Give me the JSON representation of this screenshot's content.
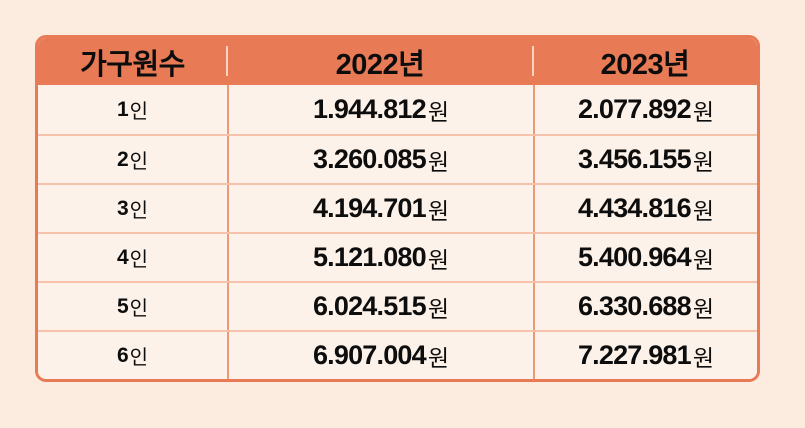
{
  "table": {
    "columns": [
      "가구원수",
      "2022년",
      "2023년"
    ],
    "person_suffix": "인",
    "currency_suffix": "원",
    "rows": [
      {
        "members": "1",
        "y2022": "1.944.812",
        "y2023": "2.077.892"
      },
      {
        "members": "2",
        "y2022": "3.260.085",
        "y2023": "3.456.155"
      },
      {
        "members": "3",
        "y2022": "4.194.701",
        "y2023": "4.434.816"
      },
      {
        "members": "4",
        "y2022": "5.121.080",
        "y2023": "5.400.964"
      },
      {
        "members": "5",
        "y2022": "6.024.515",
        "y2023": "6.330.688"
      },
      {
        "members": "6",
        "y2022": "6.907.004",
        "y2023": "7.227.981"
      }
    ]
  },
  "chart_data": {
    "type": "table",
    "title": "",
    "columns": [
      "가구원수",
      "2022년",
      "2023년"
    ],
    "rows": [
      [
        "1인",
        "1.944.812원",
        "2.077.892원"
      ],
      [
        "2인",
        "3.260.085원",
        "3.456.155원"
      ],
      [
        "3인",
        "4.194.701원",
        "4.434.816원"
      ],
      [
        "4인",
        "5.121.080원",
        "5.400.964원"
      ],
      [
        "5인",
        "6.024.515원",
        "6.330.688원"
      ],
      [
        "6인",
        "6.907.004원",
        "7.227.981원"
      ]
    ]
  },
  "colors": {
    "page_bg": "#fcecdf",
    "cell_bg": "#fdf2e9",
    "header_bg": "#e87a56",
    "outer_border": "#e87a56",
    "row_divider": "#f6c2ac",
    "col_divider": "#ef9878",
    "header_divider": "#f8e4d2",
    "text": "#0d0d0d"
  }
}
